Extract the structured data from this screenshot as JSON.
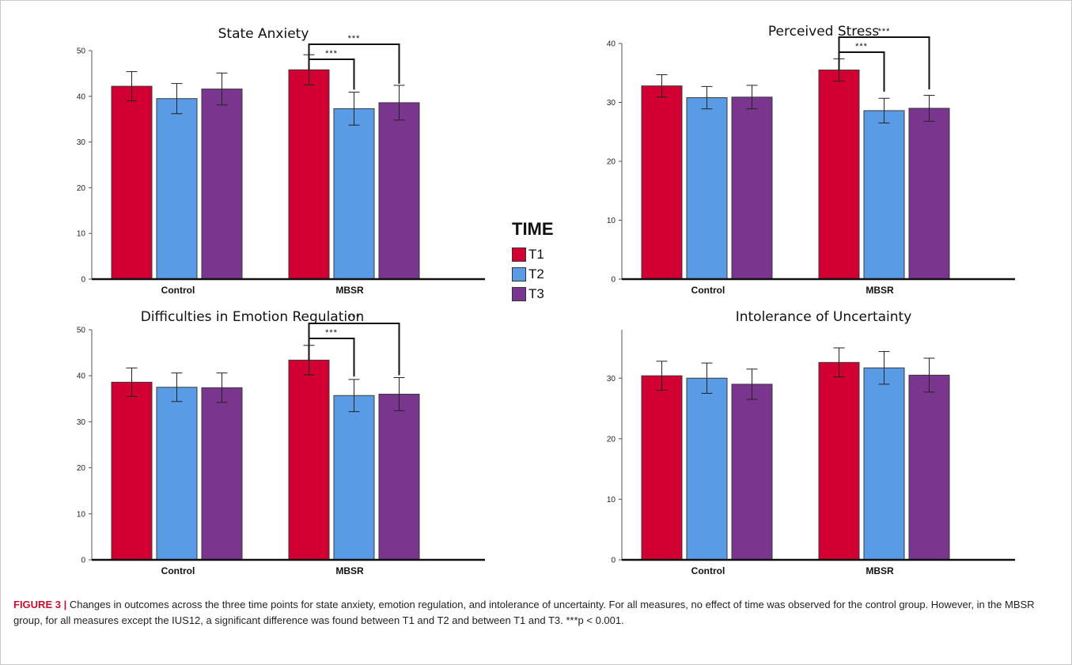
{
  "legend": {
    "title": "TIME",
    "items": [
      {
        "label": "T1",
        "color": "#d20032"
      },
      {
        "label": "T2",
        "color": "#5a9be6"
      },
      {
        "label": "T3",
        "color": "#7a358f"
      }
    ]
  },
  "caption": {
    "label": "FIGURE 3 |",
    "text": "Changes in outcomes across the three time points for state anxiety, emotion regulation, and intolerance of uncertainty. For all measures, no effect of time was observed for the control group. However, in the MBSR group, for all measures except the IUS12, a significant difference was found between T1 and T2 and between T1 and T3. ***p < 0.001."
  },
  "chart_data": [
    {
      "type": "bar",
      "title": "State Anxiety",
      "categories": [
        "Control",
        "MBSR"
      ],
      "series": [
        {
          "name": "T1",
          "color": "#d20032",
          "values": [
            42.2,
            45.8
          ],
          "error": [
            3.2,
            3.3
          ]
        },
        {
          "name": "T2",
          "color": "#5a9be6",
          "values": [
            39.5,
            37.3
          ],
          "error": [
            3.3,
            3.6
          ]
        },
        {
          "name": "T3",
          "color": "#7a358f",
          "values": [
            41.6,
            38.6
          ],
          "error": [
            3.5,
            3.8
          ]
        }
      ],
      "ylim": [
        0,
        50
      ],
      "yticks": [
        0,
        10,
        20,
        30,
        40,
        50
      ],
      "significance": [
        {
          "group": "MBSR",
          "from": "T1",
          "to": "T2",
          "label": "***"
        },
        {
          "group": "MBSR",
          "from": "T1",
          "to": "T3",
          "label": "***"
        }
      ]
    },
    {
      "type": "bar",
      "title": "Perceived Stress",
      "categories": [
        "Control",
        "MBSR"
      ],
      "series": [
        {
          "name": "T1",
          "color": "#d20032",
          "values": [
            32.8,
            35.5
          ],
          "error": [
            1.9,
            1.9
          ]
        },
        {
          "name": "T2",
          "color": "#5a9be6",
          "values": [
            30.8,
            28.6
          ],
          "error": [
            1.9,
            2.1
          ]
        },
        {
          "name": "T3",
          "color": "#7a358f",
          "values": [
            30.9,
            29.0
          ],
          "error": [
            2.0,
            2.2
          ]
        }
      ],
      "ylim": [
        0,
        40
      ],
      "yticks": [
        0,
        10,
        20,
        30,
        40
      ],
      "significance": [
        {
          "group": "MBSR",
          "from": "T1",
          "to": "T2",
          "label": "***"
        },
        {
          "group": "MBSR",
          "from": "T1",
          "to": "T3",
          "label": "***"
        }
      ]
    },
    {
      "type": "bar",
      "title": "Difficulties in Emotion Regulation",
      "categories": [
        "Control",
        "MBSR"
      ],
      "series": [
        {
          "name": "T1",
          "color": "#d20032",
          "values": [
            38.6,
            43.4
          ],
          "error": [
            3.1,
            3.2
          ]
        },
        {
          "name": "T2",
          "color": "#5a9be6",
          "values": [
            37.5,
            35.7
          ],
          "error": [
            3.1,
            3.5
          ]
        },
        {
          "name": "T3",
          "color": "#7a358f",
          "values": [
            37.4,
            36.0
          ],
          "error": [
            3.2,
            3.6
          ]
        }
      ],
      "ylim": [
        0,
        50
      ],
      "yticks": [
        0,
        10,
        20,
        30,
        40,
        50
      ],
      "significance": [
        {
          "group": "MBSR",
          "from": "T1",
          "to": "T2",
          "label": "***"
        },
        {
          "group": "MBSR",
          "from": "T1",
          "to": "T3",
          "label": "***"
        }
      ]
    },
    {
      "type": "bar",
      "title": "Intolerance of Uncertainty",
      "categories": [
        "Control",
        "MBSR"
      ],
      "series": [
        {
          "name": "T1",
          "color": "#d20032",
          "values": [
            30.4,
            32.6
          ],
          "error": [
            2.4,
            2.4
          ]
        },
        {
          "name": "T2",
          "color": "#5a9be6",
          "values": [
            30.0,
            31.7
          ],
          "error": [
            2.5,
            2.7
          ]
        },
        {
          "name": "T3",
          "color": "#7a358f",
          "values": [
            29.0,
            30.5
          ],
          "error": [
            2.5,
            2.8
          ]
        }
      ],
      "ylim": [
        0,
        38
      ],
      "yticks": [
        0,
        10,
        20,
        30
      ],
      "significance": []
    }
  ]
}
